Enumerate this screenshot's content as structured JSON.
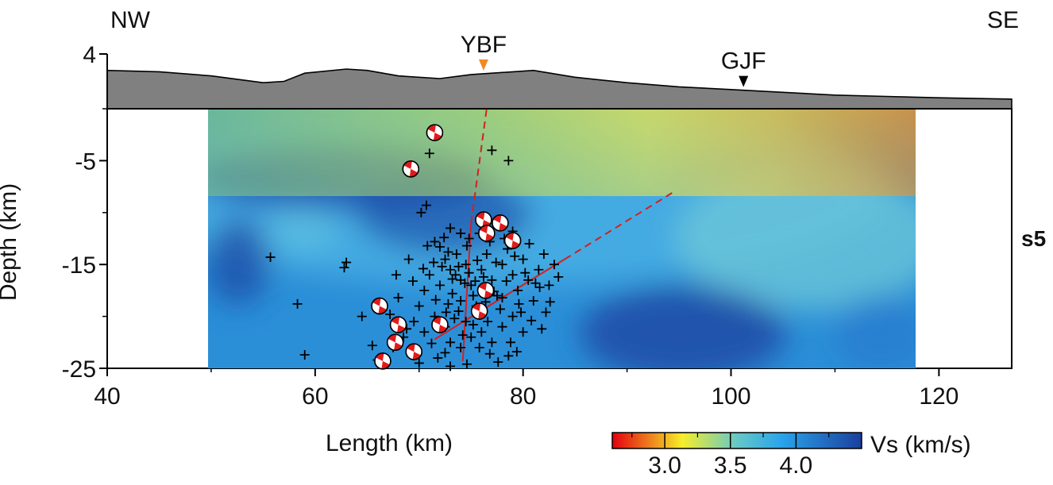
{
  "chart_data": {
    "type": "heatmap",
    "title": "",
    "xlabel": "Length (km)",
    "ylabel": "Depth (km)",
    "xlim": [
      40,
      127
    ],
    "ylim": [
      -25,
      4
    ],
    "x_ticks": [
      "40",
      "60",
      "80",
      "100",
      "120"
    ],
    "x_tick_values": [
      40,
      60,
      80,
      100,
      120
    ],
    "y_ticks": [
      "4",
      "-5",
      "-15",
      "-25"
    ],
    "y_tick_values": [
      4,
      -5,
      -15,
      -25
    ],
    "profile_name": "s5",
    "direction_left": "NW",
    "direction_right": "SE",
    "model_extent_x": [
      49.5,
      117.5
    ],
    "model_extent_depth": [
      0,
      -25
    ],
    "topography": {
      "x": [
        40,
        45,
        50,
        55,
        57,
        59,
        63,
        65,
        68,
        72,
        75,
        77,
        81,
        85,
        90,
        95,
        100,
        105,
        110,
        115,
        120,
        127
      ],
      "elevation": [
        2.8,
        2.7,
        2.4,
        1.9,
        2.0,
        2.6,
        2.9,
        2.8,
        2.4,
        2.2,
        2.5,
        2.6,
        2.8,
        2.3,
        1.9,
        1.6,
        1.4,
        1.2,
        1.0,
        0.9,
        0.8,
        0.7
      ]
    },
    "faults": [
      {
        "name": "YBF",
        "x": 76.2,
        "color": "#f08a24"
      },
      {
        "name": "GJF",
        "x": 101.2,
        "color": "#000000"
      }
    ],
    "fault_traces": [
      {
        "solid": [
          [
            74.2,
            -24.3
          ],
          [
            75.0,
            -11.0
          ]
        ],
        "dashed": [
          [
            75.0,
            -11.0
          ],
          [
            76.5,
            0
          ]
        ]
      },
      {
        "solid": [
          [
            71.5,
            -22.2
          ],
          [
            84.0,
            -14.5
          ]
        ],
        "dashed": [
          [
            84.0,
            -14.5
          ],
          [
            94.5,
            -8.0
          ]
        ]
      }
    ],
    "seismicity": [
      [
        55.7,
        -14.3
      ],
      [
        58.3,
        -18.8
      ],
      [
        59.0,
        -23.7
      ],
      [
        62.8,
        -15.3
      ],
      [
        63.0,
        -14.8
      ],
      [
        64.5,
        -20.0
      ],
      [
        70.2,
        -10.0
      ],
      [
        70.7,
        -9.3
      ],
      [
        71.5,
        -12.8
      ],
      [
        72.0,
        -13.3
      ],
      [
        72.5,
        -14.5
      ],
      [
        73.0,
        -15.5
      ],
      [
        73.5,
        -16.0
      ],
      [
        74.0,
        -16.5
      ],
      [
        74.5,
        -15.0
      ],
      [
        75.0,
        -17.0
      ],
      [
        73.2,
        -17.8
      ],
      [
        72.8,
        -18.8
      ],
      [
        73.8,
        -19.5
      ],
      [
        74.5,
        -20.5
      ],
      [
        75.5,
        -19.0
      ],
      [
        76.0,
        -15.5
      ],
      [
        76.5,
        -14.0
      ],
      [
        77.0,
        -16.5
      ],
      [
        77.5,
        -18.0
      ],
      [
        78.0,
        -15.0
      ],
      [
        78.5,
        -13.5
      ],
      [
        79.0,
        -16.0
      ],
      [
        79.5,
        -17.5
      ],
      [
        80.0,
        -14.5
      ],
      [
        80.5,
        -16.5
      ],
      [
        81.0,
        -18.5
      ],
      [
        81.5,
        -15.5
      ],
      [
        82.0,
        -14.0
      ],
      [
        82.5,
        -17.0
      ],
      [
        83.0,
        -15.0
      ],
      [
        71.0,
        -16.0
      ],
      [
        70.5,
        -17.5
      ],
      [
        70.0,
        -19.0
      ],
      [
        69.5,
        -20.5
      ],
      [
        70.5,
        -21.5
      ],
      [
        71.5,
        -20.0
      ],
      [
        72.5,
        -21.0
      ],
      [
        73.0,
        -22.5
      ],
      [
        74.0,
        -23.0
      ],
      [
        75.0,
        -22.0
      ],
      [
        76.0,
        -21.5
      ],
      [
        77.0,
        -22.5
      ],
      [
        78.0,
        -21.0
      ],
      [
        79.0,
        -20.0
      ],
      [
        80.0,
        -21.5
      ],
      [
        71.8,
        -24.0
      ],
      [
        72.5,
        -23.5
      ],
      [
        70.0,
        -24.5
      ],
      [
        68.5,
        -22.0
      ],
      [
        67.5,
        -23.0
      ],
      [
        66.0,
        -24.2
      ],
      [
        65.5,
        -22.8
      ],
      [
        74.8,
        -12.5
      ],
      [
        75.8,
        -12.0
      ],
      [
        73.0,
        -11.5
      ],
      [
        77.0,
        -4.0
      ],
      [
        78.6,
        -5.0
      ],
      [
        71.0,
        -4.3
      ],
      [
        74.0,
        -18.5
      ],
      [
        75.2,
        -18.0
      ],
      [
        76.4,
        -18.6
      ],
      [
        77.8,
        -19.3
      ],
      [
        72.0,
        -17.0
      ],
      [
        73.6,
        -14.0
      ],
      [
        74.6,
        -13.2
      ],
      [
        76.8,
        -12.8
      ],
      [
        78.2,
        -12.5
      ],
      [
        80.6,
        -13.0
      ],
      [
        75.8,
        -23.0
      ],
      [
        76.6,
        -20.5
      ],
      [
        78.8,
        -22.5
      ],
      [
        79.6,
        -18.8
      ],
      [
        81.6,
        -17.2
      ],
      [
        69.0,
        -14.5
      ],
      [
        68.0,
        -18.2
      ],
      [
        67.2,
        -19.8
      ],
      [
        73.4,
        -20.2
      ],
      [
        74.2,
        -21.8
      ],
      [
        72.2,
        -15.2
      ],
      [
        74.4,
        -16.8
      ],
      [
        75.6,
        -14.6
      ],
      [
        76.2,
        -16.2
      ],
      [
        73.2,
        -16.4
      ],
      [
        74.8,
        -15.8
      ],
      [
        75.4,
        -16.6
      ],
      [
        73.8,
        -15.2
      ],
      [
        72.8,
        -13.8
      ],
      [
        71.4,
        -14.8
      ],
      [
        70.8,
        -13.2
      ],
      [
        79.2,
        -14.2
      ],
      [
        80.2,
        -15.8
      ],
      [
        81.2,
        -16.8
      ],
      [
        77.4,
        -14.8
      ],
      [
        78.4,
        -16.6
      ],
      [
        82.6,
        -18.6
      ],
      [
        83.4,
        -16.2
      ],
      [
        82.2,
        -19.6
      ],
      [
        76.8,
        -23.6
      ],
      [
        77.6,
        -24.4
      ],
      [
        79.4,
        -23.4
      ],
      [
        78.6,
        -23.8
      ],
      [
        73.0,
        -24.8
      ],
      [
        74.6,
        -24.6
      ],
      [
        71.2,
        -22.6
      ],
      [
        72.6,
        -19.6
      ],
      [
        71.6,
        -18.4
      ],
      [
        70.4,
        -15.4
      ],
      [
        69.4,
        -16.6
      ],
      [
        68.8,
        -21.2
      ],
      [
        67.8,
        -16.0
      ],
      [
        75.2,
        -20.8
      ],
      [
        76.0,
        -19.8
      ],
      [
        77.2,
        -17.6
      ],
      [
        78.0,
        -18.2
      ],
      [
        79.8,
        -19.6
      ],
      [
        80.8,
        -20.4
      ],
      [
        81.8,
        -21.2
      ],
      [
        79.0,
        -11.8
      ],
      [
        77.6,
        -11.0
      ],
      [
        76.2,
        -10.6
      ],
      [
        74.0,
        -12.0
      ],
      [
        72.4,
        -12.4
      ]
    ],
    "focal_mechanisms": [
      [
        71.5,
        -2.3
      ],
      [
        69.2,
        -5.8
      ],
      [
        76.2,
        -10.7
      ],
      [
        77.8,
        -11.0
      ],
      [
        76.5,
        -12.0
      ],
      [
        79.0,
        -12.7
      ],
      [
        76.4,
        -17.5
      ],
      [
        75.8,
        -19.5
      ],
      [
        66.2,
        -19.0
      ],
      [
        72.0,
        -20.8
      ],
      [
        68.0,
        -20.8
      ],
      [
        67.7,
        -22.5
      ],
      [
        69.5,
        -23.4
      ],
      [
        66.5,
        -24.3
      ]
    ],
    "colorbar": {
      "label": "Vs (km/s)",
      "ticks": [
        "3.0",
        "3.5",
        "4.0"
      ],
      "tick_values": [
        3.0,
        3.5,
        4.0
      ],
      "range": [
        2.6,
        4.5
      ],
      "colors": [
        "#e3000f",
        "#f6ee2a",
        "#66c8c6",
        "#2aa3ea",
        "#1b3f9e"
      ]
    }
  }
}
